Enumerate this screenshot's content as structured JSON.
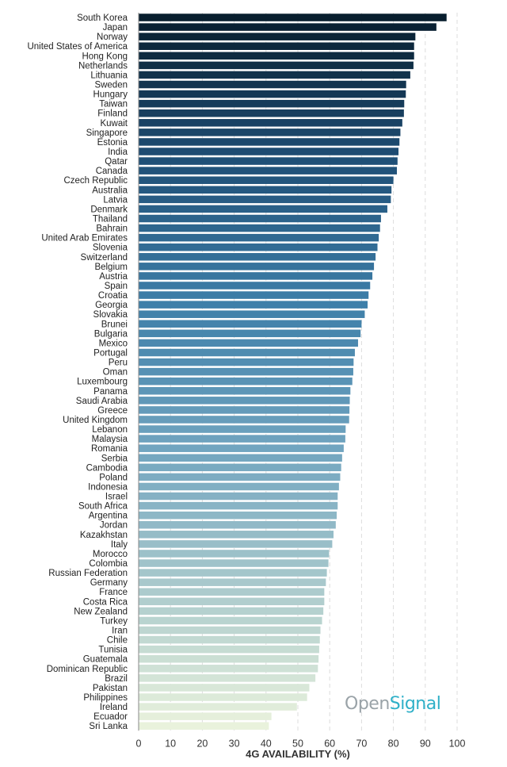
{
  "chart_data": {
    "type": "bar",
    "orientation": "horizontal",
    "xlabel": "4G AVAILABILITY (%)",
    "xlim": [
      0,
      100
    ],
    "xticks": [
      0,
      10,
      20,
      30,
      40,
      50,
      60,
      70,
      80,
      90,
      100
    ],
    "grid": true,
    "color_scale": [
      "#081e2e",
      "#1f4f76",
      "#3d7ea8",
      "#6fa3bf",
      "#a9c9cc",
      "#e9f2dc"
    ],
    "categories": [
      "South Korea",
      "Japan",
      "Norway",
      "United States of America",
      "Hong Kong",
      "Netherlands",
      "Lithuania",
      "Sweden",
      "Hungary",
      "Taiwan",
      "Finland",
      "Kuwait",
      "Singapore",
      "Estonia",
      "India",
      "Qatar",
      "Canada",
      "Czech Republic",
      "Australia",
      "Latvia",
      "Denmark",
      "Thailand",
      "Bahrain",
      "United Arab Emirates",
      "Slovenia",
      "Switzerland",
      "Belgium",
      "Austria",
      "Spain",
      "Croatia",
      "Georgia",
      "Slovakia",
      "Brunei",
      "Bulgaria",
      "Mexico",
      "Portugal",
      "Peru",
      "Oman",
      "Luxembourg",
      "Panama",
      "Saudi Arabia",
      "Greece",
      "United Kingdom",
      "Lebanon",
      "Malaysia",
      "Romania",
      "Serbia",
      "Cambodia",
      "Poland",
      "Indonesia",
      "Israel",
      "South Africa",
      "Argentina",
      "Jordan",
      "Kazakhstan",
      "Italy",
      "Morocco",
      "Colombia",
      "Russian Federation",
      "Germany",
      "France",
      "Costa Rica",
      "New Zealand",
      "Turkey",
      "Iran",
      "Chile",
      "Tunisia",
      "Guatemala",
      "Dominican Republic",
      "Brazil",
      "Pakistan",
      "Philippines",
      "Ireland",
      "Ecuador",
      "Sri Lanka"
    ],
    "values": [
      96.7,
      93.5,
      86.9,
      86.5,
      86.5,
      86.3,
      85.3,
      84.0,
      83.9,
      83.4,
      83.3,
      82.8,
      82.2,
      81.9,
      81.6,
      81.3,
      81.1,
      80.0,
      79.4,
      79.2,
      78.1,
      76.1,
      75.8,
      75.4,
      75.0,
      74.4,
      73.9,
      73.4,
      72.7,
      72.2,
      71.9,
      71.0,
      70.0,
      69.7,
      68.9,
      67.9,
      67.5,
      67.4,
      67.1,
      66.5,
      66.3,
      66.2,
      66.1,
      65.0,
      64.9,
      64.4,
      63.9,
      63.6,
      63.3,
      62.9,
      62.5,
      62.5,
      62.2,
      61.9,
      61.2,
      60.8,
      59.8,
      59.6,
      59.1,
      58.8,
      58.3,
      58.3,
      58.0,
      57.6,
      57.1,
      56.9,
      56.7,
      56.5,
      56.3,
      55.5,
      53.6,
      52.9,
      49.7,
      41.7,
      40.9
    ]
  },
  "logo": {
    "part1": "Open",
    "part2": "Signal"
  }
}
